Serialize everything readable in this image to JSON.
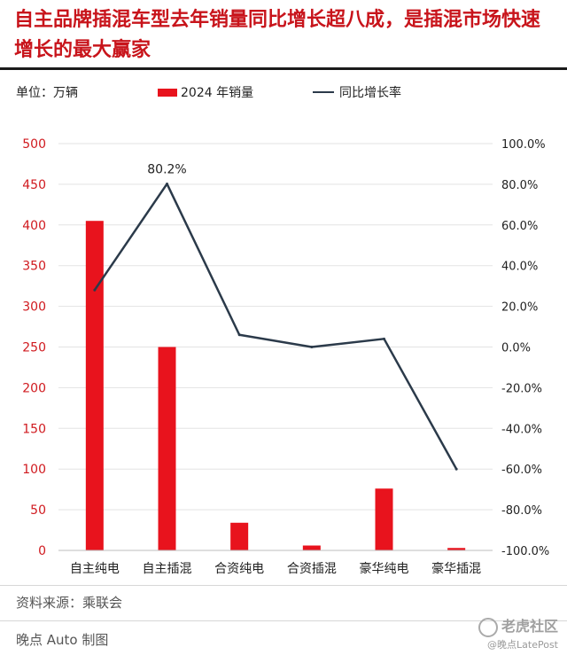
{
  "title": "自主品牌插混车型去年销量同比增长超八成，是插混市场快速增长的最大赢家",
  "unit_label": "单位：万辆",
  "legend": {
    "bar_label": "2024 年销量",
    "line_label": "同比增长率"
  },
  "source": "资料来源：乘联会",
  "credit": "晚点 Auto 制图",
  "corner_watermark": {
    "main": "老虎社区",
    "sub": "@晚点LatePost"
  },
  "colors": {
    "title": "#c8141b",
    "bar": "#e8131d",
    "line": "#2b3a4a",
    "left_axis_text": "#d01a1f"
  },
  "chart_data": {
    "type": "bar",
    "categories": [
      "自主纯电",
      "自主插混",
      "合资纯电",
      "合资插混",
      "豪华纯电",
      "豪华插混"
    ],
    "series": [
      {
        "name": "2024 年销量",
        "type": "bar",
        "axis": "left",
        "values": [
          405,
          250,
          34,
          6,
          76,
          3
        ]
      },
      {
        "name": "同比增长率",
        "type": "line",
        "axis": "right",
        "values": [
          28,
          80.2,
          6,
          0,
          4,
          -60
        ]
      }
    ],
    "annotations": [
      {
        "category": "自主插混",
        "series": "同比增长率",
        "text": "80.2%"
      }
    ],
    "y_left": {
      "range": [
        0,
        500
      ],
      "ticks": [
        "0",
        "50",
        "100",
        "150",
        "200",
        "250",
        "300",
        "350",
        "400",
        "450",
        "500"
      ]
    },
    "y_right": {
      "range": [
        -100,
        100
      ],
      "ticks": [
        "-100.0%",
        "-80.0%",
        "-60.0%",
        "-40.0%",
        "-20.0%",
        "0.0%",
        "20.0%",
        "40.0%",
        "60.0%",
        "80.0%",
        "100.0%"
      ]
    },
    "grid": true,
    "legend_position": "top"
  }
}
